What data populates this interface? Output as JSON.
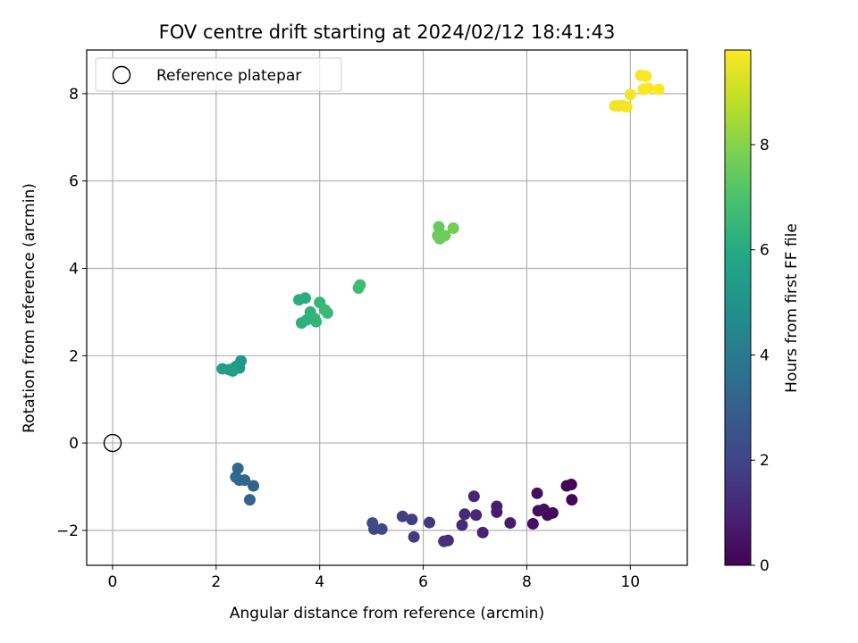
{
  "chart_data": {
    "type": "scatter",
    "title": "FOV centre drift starting at 2024/02/12 18:41:43",
    "xlabel": "Angular distance from reference (arcmin)",
    "ylabel": "Rotation from reference (arcmin)",
    "xlim": [
      -0.5,
      11.1
    ],
    "ylim": [
      -2.8,
      9.0
    ],
    "xticks": [
      0,
      2,
      4,
      6,
      8,
      10
    ],
    "yticks": [
      -2,
      0,
      2,
      4,
      6,
      8
    ],
    "grid": true,
    "legend": {
      "location": "upper-left",
      "entries": [
        "Reference platepar"
      ]
    },
    "reference_point": {
      "x": 0,
      "y": 0,
      "label": "Reference platepar",
      "marker": "open-circle"
    },
    "colorbar": {
      "label": "Hours from first FF file",
      "colormap": "viridis",
      "range": [
        0,
        9.8
      ],
      "ticks": [
        0,
        2,
        4,
        6,
        8
      ]
    },
    "points": [
      {
        "x": 8.86,
        "y": -0.95,
        "c": 0.05
      },
      {
        "x": 8.77,
        "y": -0.98,
        "c": 0.1
      },
      {
        "x": 8.87,
        "y": -1.3,
        "c": 0.15
      },
      {
        "x": 8.5,
        "y": -1.6,
        "c": 0.2
      },
      {
        "x": 8.4,
        "y": -1.65,
        "c": 0.25
      },
      {
        "x": 8.33,
        "y": -1.52,
        "c": 0.3
      },
      {
        "x": 8.22,
        "y": -1.55,
        "c": 0.35
      },
      {
        "x": 8.2,
        "y": -1.15,
        "c": 0.4
      },
      {
        "x": 8.12,
        "y": -1.85,
        "c": 0.45
      },
      {
        "x": 7.68,
        "y": -1.83,
        "c": 0.7
      },
      {
        "x": 7.42,
        "y": -1.58,
        "c": 0.75
      },
      {
        "x": 7.42,
        "y": -1.45,
        "c": 0.8
      },
      {
        "x": 7.15,
        "y": -2.05,
        "c": 0.9
      },
      {
        "x": 7.02,
        "y": -1.65,
        "c": 1.0
      },
      {
        "x": 6.98,
        "y": -1.22,
        "c": 1.05
      },
      {
        "x": 6.8,
        "y": -1.63,
        "c": 1.15
      },
      {
        "x": 6.75,
        "y": -1.88,
        "c": 1.2
      },
      {
        "x": 6.48,
        "y": -2.23,
        "c": 1.3
      },
      {
        "x": 6.4,
        "y": -2.25,
        "c": 1.35
      },
      {
        "x": 6.12,
        "y": -1.82,
        "c": 1.55
      },
      {
        "x": 5.82,
        "y": -2.15,
        "c": 1.7
      },
      {
        "x": 5.78,
        "y": -1.75,
        "c": 1.75
      },
      {
        "x": 5.6,
        "y": -1.68,
        "c": 1.85
      },
      {
        "x": 5.2,
        "y": -1.97,
        "c": 2.1
      },
      {
        "x": 5.05,
        "y": -1.97,
        "c": 2.15
      },
      {
        "x": 5.02,
        "y": -1.83,
        "c": 2.2
      },
      {
        "x": 2.72,
        "y": -0.98,
        "c": 3.1
      },
      {
        "x": 2.65,
        "y": -1.3,
        "c": 3.15
      },
      {
        "x": 2.55,
        "y": -0.85,
        "c": 3.2
      },
      {
        "x": 2.45,
        "y": -0.85,
        "c": 3.25
      },
      {
        "x": 2.42,
        "y": -0.58,
        "c": 3.3
      },
      {
        "x": 2.38,
        "y": -0.78,
        "c": 3.35
      },
      {
        "x": 2.48,
        "y": 1.88,
        "c": 5.2
      },
      {
        "x": 2.45,
        "y": 1.72,
        "c": 5.25
      },
      {
        "x": 2.38,
        "y": 1.75,
        "c": 5.3
      },
      {
        "x": 2.32,
        "y": 1.65,
        "c": 5.35
      },
      {
        "x": 2.25,
        "y": 1.68,
        "c": 5.4
      },
      {
        "x": 2.12,
        "y": 1.7,
        "c": 5.45
      },
      {
        "x": 3.6,
        "y": 3.28,
        "c": 6.1
      },
      {
        "x": 3.72,
        "y": 3.32,
        "c": 6.15
      },
      {
        "x": 3.65,
        "y": 2.75,
        "c": 6.2
      },
      {
        "x": 3.75,
        "y": 2.82,
        "c": 6.25
      },
      {
        "x": 3.82,
        "y": 3.0,
        "c": 6.3
      },
      {
        "x": 3.9,
        "y": 2.85,
        "c": 6.35
      },
      {
        "x": 3.93,
        "y": 2.78,
        "c": 6.4
      },
      {
        "x": 4.0,
        "y": 3.22,
        "c": 6.45
      },
      {
        "x": 4.1,
        "y": 3.05,
        "c": 6.5
      },
      {
        "x": 4.15,
        "y": 2.98,
        "c": 6.55
      },
      {
        "x": 4.75,
        "y": 3.55,
        "c": 6.7
      },
      {
        "x": 4.78,
        "y": 3.62,
        "c": 6.75
      },
      {
        "x": 6.3,
        "y": 4.95,
        "c": 7.45
      },
      {
        "x": 6.28,
        "y": 4.75,
        "c": 7.5
      },
      {
        "x": 6.32,
        "y": 4.68,
        "c": 7.55
      },
      {
        "x": 6.42,
        "y": 4.75,
        "c": 7.6
      },
      {
        "x": 6.58,
        "y": 4.92,
        "c": 7.7
      },
      {
        "x": 9.7,
        "y": 7.72,
        "c": 9.55
      },
      {
        "x": 9.78,
        "y": 7.72,
        "c": 9.6
      },
      {
        "x": 9.85,
        "y": 7.73,
        "c": 9.62
      },
      {
        "x": 9.93,
        "y": 7.7,
        "c": 9.65
      },
      {
        "x": 10.0,
        "y": 7.98,
        "c": 9.68
      },
      {
        "x": 10.2,
        "y": 8.42,
        "c": 9.72
      },
      {
        "x": 10.25,
        "y": 8.1,
        "c": 9.74
      },
      {
        "x": 10.3,
        "y": 8.4,
        "c": 9.76
      },
      {
        "x": 10.35,
        "y": 8.12,
        "c": 9.78
      },
      {
        "x": 10.55,
        "y": 8.1,
        "c": 9.8
      }
    ]
  }
}
